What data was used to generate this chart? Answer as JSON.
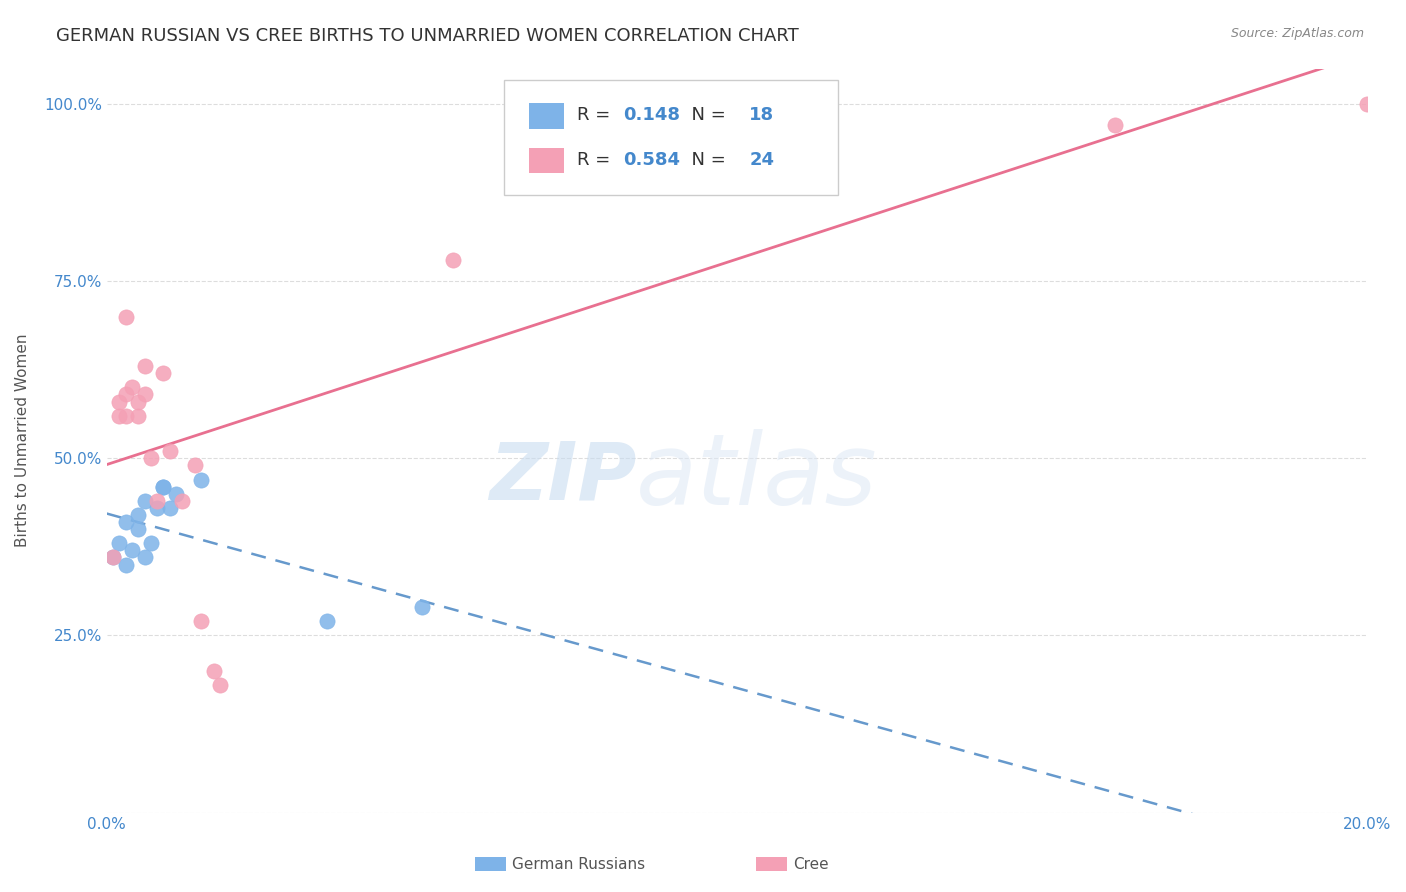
{
  "title": "GERMAN RUSSIAN VS CREE BIRTHS TO UNMARRIED WOMEN CORRELATION CHART",
  "source": "Source: ZipAtlas.com",
  "xlabel": "",
  "ylabel": "Births to Unmarried Women",
  "watermark_zip": "ZIP",
  "watermark_atlas": "atlas",
  "x_min": 0.0,
  "x_max": 0.2,
  "y_min": 0.0,
  "y_max": 1.05,
  "x_ticks": [
    0.0,
    0.04,
    0.08,
    0.12,
    0.16,
    0.2
  ],
  "x_tick_labels": [
    "0.0%",
    "",
    "",
    "",
    "",
    "20.0%"
  ],
  "y_ticks": [
    0.0,
    0.25,
    0.5,
    0.75,
    1.0
  ],
  "y_tick_labels": [
    "",
    "25.0%",
    "50.0%",
    "75.0%",
    "100.0%"
  ],
  "german_russian_color": "#7eb3e8",
  "cree_color": "#f4a0b5",
  "german_russian_line_color": "#6699cc",
  "cree_line_color": "#e87090",
  "legend_r_german": "0.148",
  "legend_n_german": "18",
  "legend_r_cree": "0.584",
  "legend_n_cree": "24",
  "german_russian_x": [
    0.001,
    0.002,
    0.003,
    0.003,
    0.004,
    0.005,
    0.005,
    0.006,
    0.006,
    0.007,
    0.008,
    0.009,
    0.009,
    0.01,
    0.011,
    0.015,
    0.035,
    0.05
  ],
  "german_russian_y": [
    0.36,
    0.38,
    0.41,
    0.35,
    0.37,
    0.4,
    0.42,
    0.44,
    0.36,
    0.38,
    0.43,
    0.46,
    0.46,
    0.43,
    0.45,
    0.47,
    0.27,
    0.29
  ],
  "cree_x": [
    0.001,
    0.002,
    0.002,
    0.003,
    0.003,
    0.003,
    0.004,
    0.005,
    0.005,
    0.006,
    0.006,
    0.007,
    0.008,
    0.009,
    0.01,
    0.012,
    0.014,
    0.015,
    0.017,
    0.018,
    0.055,
    0.085,
    0.16,
    0.2
  ],
  "cree_y": [
    0.36,
    0.56,
    0.58,
    0.56,
    0.59,
    0.7,
    0.6,
    0.56,
    0.58,
    0.63,
    0.59,
    0.5,
    0.44,
    0.62,
    0.51,
    0.44,
    0.49,
    0.27,
    0.2,
    0.18,
    0.78,
    0.96,
    0.97,
    1.0
  ],
  "background_color": "#ffffff",
  "grid_color": "#dddddd",
  "title_fontsize": 13,
  "axis_label_fontsize": 11,
  "tick_fontsize": 11,
  "legend_fontsize": 13,
  "tick_color": "#4488cc",
  "text_color": "#555555",
  "source_color": "#888888"
}
